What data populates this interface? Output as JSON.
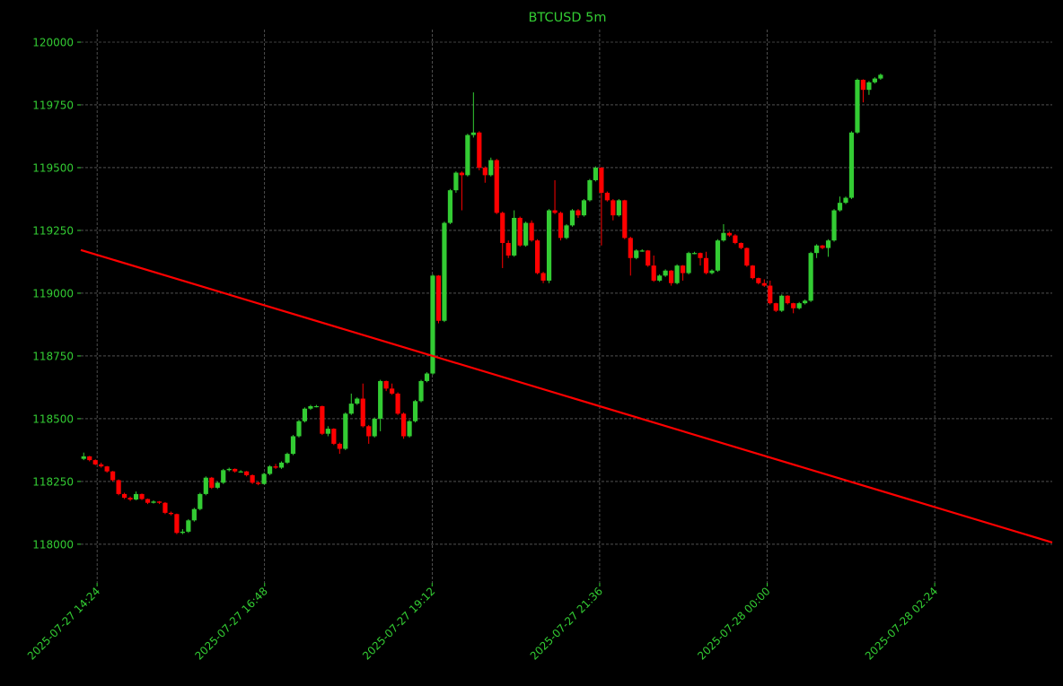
{
  "chart_data": {
    "type": "candlestick",
    "title": "BTCUSD 5m",
    "xlabel": "",
    "ylabel": "",
    "grid": true,
    "colors": {
      "background": "#000000",
      "text": "#33cc33",
      "up": "#33cc33",
      "down": "#ff0000",
      "grid": "#808080",
      "trendline": "#ff0000"
    },
    "xlim": [
      "2025-07-27 14:10",
      "2025-07-28 04:05"
    ],
    "ylim": [
      117846,
      120050
    ],
    "yticks": [
      118000,
      118250,
      118500,
      118750,
      119000,
      119250,
      119500,
      119750,
      120000
    ],
    "ytick_labels": [
      "118000",
      "118250",
      "118500",
      "118750",
      "119000",
      "119250",
      "119500",
      "119750",
      "120000"
    ],
    "xticks": [
      "2025-07-27 14:24",
      "2025-07-27 16:48",
      "2025-07-27 19:12",
      "2025-07-27 21:36",
      "2025-07-28 00:00",
      "2025-07-28 02:24"
    ],
    "xtick_labels": [
      "2025-07-27 14:24",
      "2025-07-27 16:48",
      "2025-07-27 19:12",
      "2025-07-27 21:36",
      "2025-07-28 00:00",
      "2025-07-28 02:24"
    ],
    "candle_start": "2025-07-27 14:10",
    "candle_interval_minutes": 5,
    "ohlc": [
      [
        118340,
        118365,
        118335,
        118350
      ],
      [
        118350,
        118352,
        118330,
        118335
      ],
      [
        118335,
        118338,
        118315,
        118318
      ],
      [
        118318,
        118325,
        118305,
        118310
      ],
      [
        118310,
        118312,
        118285,
        118290
      ],
      [
        118290,
        118292,
        118250,
        118255
      ],
      [
        118255,
        118258,
        118195,
        118200
      ],
      [
        118200,
        118205,
        118180,
        118185
      ],
      [
        118185,
        118190,
        118172,
        118178
      ],
      [
        118178,
        118210,
        118175,
        118200
      ],
      [
        118200,
        118202,
        118176,
        118180
      ],
      [
        118180,
        118182,
        118160,
        118165
      ],
      [
        118165,
        118175,
        118162,
        118170
      ],
      [
        118170,
        118172,
        118160,
        118165
      ],
      [
        118165,
        118168,
        118120,
        118125
      ],
      [
        118125,
        118130,
        118115,
        118120
      ],
      [
        118120,
        118122,
        118040,
        118045
      ],
      [
        118045,
        118060,
        118040,
        118050
      ],
      [
        118050,
        118100,
        118045,
        118095
      ],
      [
        118095,
        118145,
        118090,
        118140
      ],
      [
        118140,
        118205,
        118135,
        118200
      ],
      [
        118200,
        118270,
        118195,
        118265
      ],
      [
        118265,
        118268,
        118220,
        118225
      ],
      [
        118225,
        118250,
        118220,
        118245
      ],
      [
        118245,
        118300,
        118240,
        118295
      ],
      [
        118295,
        118305,
        118290,
        118300
      ],
      [
        118300,
        118302,
        118285,
        118290
      ],
      [
        118290,
        118295,
        118286,
        118290
      ],
      [
        118290,
        118292,
        118270,
        118275
      ],
      [
        118275,
        118278,
        118240,
        118245
      ],
      [
        118245,
        118250,
        118235,
        118240
      ],
      [
        118240,
        118285,
        118238,
        118280
      ],
      [
        118280,
        118315,
        118275,
        118310
      ],
      [
        118310,
        118320,
        118300,
        118305
      ],
      [
        118305,
        118330,
        118300,
        118325
      ],
      [
        118325,
        118365,
        118320,
        118360
      ],
      [
        118360,
        118435,
        118355,
        118430
      ],
      [
        118430,
        118495,
        118425,
        118490
      ],
      [
        118490,
        118545,
        118485,
        118540
      ],
      [
        118540,
        118555,
        118535,
        118550
      ],
      [
        118550,
        118555,
        118545,
        118550
      ],
      [
        118550,
        118552,
        118435,
        118440
      ],
      [
        118440,
        118470,
        118430,
        118460
      ],
      [
        118460,
        118462,
        118395,
        118400
      ],
      [
        118400,
        118405,
        118360,
        118380
      ],
      [
        118380,
        118525,
        118375,
        118520
      ],
      [
        118520,
        118600,
        118515,
        118560
      ],
      [
        118560,
        118585,
        118555,
        118580
      ],
      [
        118580,
        118640,
        118465,
        118470
      ],
      [
        118470,
        118475,
        118400,
        118430
      ],
      [
        118430,
        118505,
        118425,
        118500
      ],
      [
        118500,
        118655,
        118450,
        118650
      ],
      [
        118650,
        118652,
        118610,
        118620
      ],
      [
        118620,
        118640,
        118595,
        118600
      ],
      [
        118600,
        118605,
        118515,
        118520
      ],
      [
        118520,
        118525,
        118420,
        118430
      ],
      [
        118430,
        118495,
        118425,
        118490
      ],
      [
        118490,
        118575,
        118485,
        118570
      ],
      [
        118570,
        118655,
        118565,
        118650
      ],
      [
        118650,
        118685,
        118645,
        118680
      ],
      [
        118680,
        119075,
        118675,
        119070
      ],
      [
        119070,
        119072,
        118880,
        118890
      ],
      [
        118890,
        119285,
        118885,
        119280
      ],
      [
        119280,
        119415,
        119275,
        119410
      ],
      [
        119410,
        119485,
        119400,
        119480
      ],
      [
        119480,
        119485,
        119330,
        119470
      ],
      [
        119470,
        119635,
        119465,
        119630
      ],
      [
        119630,
        119800,
        119620,
        119640
      ],
      [
        119640,
        119645,
        119490,
        119500
      ],
      [
        119500,
        119505,
        119440,
        119470
      ],
      [
        119470,
        119540,
        119465,
        119530
      ],
      [
        119530,
        119535,
        119315,
        119320
      ],
      [
        119320,
        119325,
        119100,
        119200
      ],
      [
        119200,
        119210,
        119140,
        119150
      ],
      [
        119150,
        119330,
        119145,
        119300
      ],
      [
        119300,
        119305,
        119185,
        119190
      ],
      [
        119190,
        119285,
        119185,
        119280
      ],
      [
        119280,
        119290,
        119205,
        119210
      ],
      [
        119210,
        119215,
        119075,
        119080
      ],
      [
        119080,
        119085,
        119040,
        119050
      ],
      [
        119050,
        119335,
        119040,
        119330
      ],
      [
        119330,
        119450,
        119315,
        119320
      ],
      [
        119320,
        119325,
        119210,
        119220
      ],
      [
        119220,
        119275,
        119215,
        119270
      ],
      [
        119270,
        119335,
        119265,
        119330
      ],
      [
        119330,
        119335,
        119300,
        119310
      ],
      [
        119310,
        119375,
        119305,
        119370
      ],
      [
        119370,
        119455,
        119365,
        119450
      ],
      [
        119450,
        119505,
        119445,
        119500
      ],
      [
        119500,
        119502,
        119190,
        119400
      ],
      [
        119400,
        119405,
        119365,
        119370
      ],
      [
        119370,
        119375,
        119290,
        119310
      ],
      [
        119310,
        119375,
        119305,
        119370
      ],
      [
        119370,
        119372,
        119215,
        119220
      ],
      [
        119220,
        119225,
        119070,
        119140
      ],
      [
        119140,
        119175,
        119135,
        119170
      ],
      [
        119170,
        119175,
        119165,
        119170
      ],
      [
        119170,
        119172,
        119105,
        119110
      ],
      [
        119110,
        119150,
        119045,
        119050
      ],
      [
        119050,
        119075,
        119045,
        119070
      ],
      [
        119070,
        119095,
        119065,
        119090
      ],
      [
        119090,
        119092,
        119030,
        119040
      ],
      [
        119040,
        119115,
        119035,
        119110
      ],
      [
        119110,
        119112,
        119050,
        119080
      ],
      [
        119080,
        119165,
        119075,
        119160
      ],
      [
        119160,
        119165,
        119155,
        119160
      ],
      [
        119160,
        119162,
        119110,
        119140
      ],
      [
        119140,
        119165,
        119075,
        119080
      ],
      [
        119080,
        119095,
        119075,
        119090
      ],
      [
        119090,
        119215,
        119085,
        119210
      ],
      [
        119210,
        119275,
        119205,
        119240
      ],
      [
        119240,
        119245,
        119225,
        119230
      ],
      [
        119230,
        119235,
        119195,
        119200
      ],
      [
        119200,
        119202,
        119175,
        119180
      ],
      [
        119180,
        119182,
        119105,
        119110
      ],
      [
        119110,
        119112,
        119055,
        119060
      ],
      [
        119060,
        119062,
        119035,
        119040
      ],
      [
        119040,
        119055,
        119025,
        119030
      ],
      [
        119030,
        119050,
        118955,
        118960
      ],
      [
        118960,
        118962,
        118925,
        118930
      ],
      [
        118930,
        118995,
        118925,
        118990
      ],
      [
        118990,
        118992,
        118955,
        118960
      ],
      [
        118960,
        118962,
        118920,
        118940
      ],
      [
        118940,
        118965,
        118935,
        118960
      ],
      [
        118960,
        118975,
        118955,
        118970
      ],
      [
        118970,
        119165,
        118965,
        119160
      ],
      [
        119160,
        119195,
        119140,
        119190
      ],
      [
        119190,
        119192,
        119175,
        119180
      ],
      [
        119180,
        119215,
        119145,
        119210
      ],
      [
        119210,
        119335,
        119205,
        119330
      ],
      [
        119330,
        119385,
        119325,
        119360
      ],
      [
        119360,
        119385,
        119355,
        119380
      ],
      [
        119380,
        119645,
        119375,
        119640
      ],
      [
        119640,
        119855,
        119635,
        119850
      ],
      [
        119850,
        119852,
        119760,
        119810
      ],
      [
        119810,
        119845,
        119790,
        119840
      ],
      [
        119840,
        119860,
        119835,
        119855
      ],
      [
        119855,
        119875,
        119850,
        119870
      ]
    ],
    "trendline": {
      "start": [
        "2025-07-27 14:10",
        119172
      ],
      "end": [
        "2025-07-28 04:05",
        118007
      ]
    }
  }
}
